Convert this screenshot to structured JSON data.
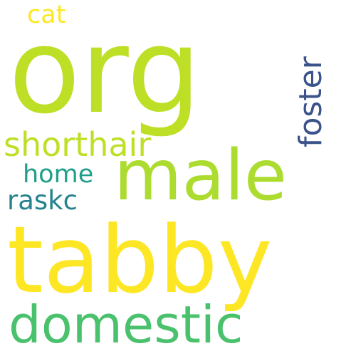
{
  "words": {
    "org": {
      "text": "org",
      "color": "#bddf26"
    },
    "tabby": {
      "text": "tabby",
      "color": "#fde725"
    },
    "male": {
      "text": "male",
      "color": "#addc30"
    },
    "domestic": {
      "text": "domestic",
      "color": "#4ac16d"
    },
    "shorthair": {
      "text": "shorthair",
      "color": "#bddf26"
    },
    "foster": {
      "text": "foster",
      "color": "#3b528b"
    },
    "home": {
      "text": "home",
      "color": "#1f9e89"
    },
    "raskc": {
      "text": "raskc",
      "color": "#26828e"
    },
    "cat": {
      "text": "cat",
      "color": "#fde725"
    }
  }
}
